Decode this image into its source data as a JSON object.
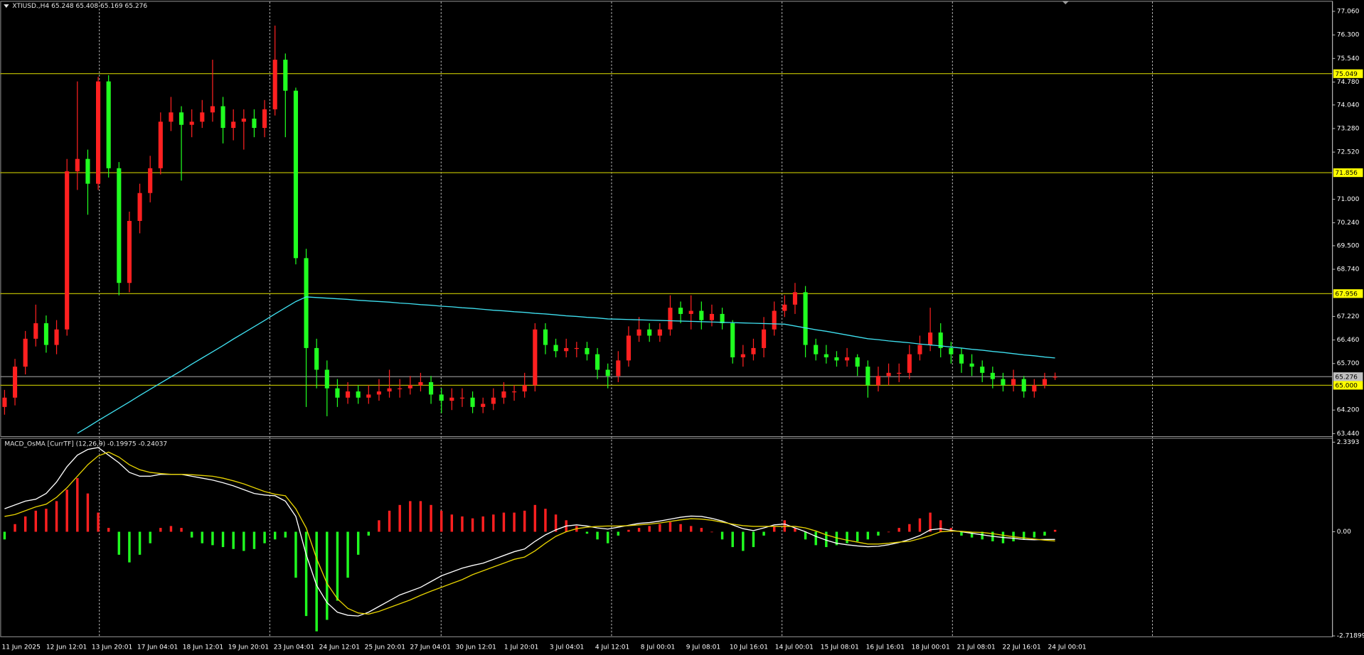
{
  "chart_data": [
    {
      "type": "candlestick",
      "title": "XTIUSD.,H4  65.248 65.408 65.169 65.276",
      "open": [
        64.3,
        64.6,
        65.6,
        66.5,
        67.0,
        66.3,
        66.8,
        71.9,
        72.3,
        71.5,
        74.8,
        72.0,
        68.3,
        70.3,
        71.2,
        72.0,
        73.5,
        73.8,
        73.4,
        73.5,
        73.8,
        74.0,
        73.3,
        73.5,
        73.6,
        73.3,
        73.9,
        75.5,
        74.5,
        69.1,
        66.2,
        65.5,
        64.9,
        64.6,
        64.8,
        64.6,
        64.7,
        64.8,
        64.9,
        64.9,
        65.0,
        65.1,
        64.7,
        64.5,
        64.6,
        64.6,
        64.3,
        64.4,
        64.6,
        64.8,
        64.8,
        65.0,
        66.8,
        66.3,
        66.1,
        66.2,
        66.2,
        66.0,
        65.5,
        65.3,
        65.8,
        66.6,
        66.8,
        66.6,
        66.8,
        67.5,
        67.3,
        67.4,
        67.1,
        67.3,
        67.0,
        65.9,
        66.0,
        66.2,
        66.8,
        67.4,
        67.6,
        68.0,
        66.3,
        66.0,
        65.9,
        65.8,
        65.9,
        65.6,
        65.0,
        65.3,
        65.4,
        65.4,
        66.0,
        66.3,
        66.7,
        66.2,
        66.0,
        65.7,
        65.6,
        65.4,
        65.2,
        65.0,
        65.2,
        64.8,
        65.0,
        65.248
      ],
      "high": [
        64.85,
        65.85,
        66.75,
        67.6,
        67.25,
        67.1,
        72.3,
        74.8,
        72.6,
        74.95,
        75.0,
        72.2,
        70.6,
        71.5,
        72.4,
        73.8,
        74.3,
        74.0,
        73.9,
        74.2,
        75.5,
        74.3,
        73.9,
        73.9,
        73.9,
        74.2,
        76.6,
        75.7,
        74.6,
        69.4,
        66.5,
        65.8,
        65.2,
        65.1,
        65.0,
        65.0,
        65.2,
        65.5,
        65.2,
        65.3,
        65.4,
        65.3,
        64.9,
        64.9,
        64.9,
        64.8,
        64.6,
        64.9,
        65.1,
        65.0,
        65.4,
        67.0,
        67.0,
        66.5,
        66.5,
        66.4,
        66.4,
        66.2,
        65.7,
        66.1,
        66.9,
        67.2,
        67.0,
        67.0,
        67.9,
        67.7,
        67.9,
        67.7,
        67.6,
        67.5,
        67.1,
        66.3,
        66.5,
        67.2,
        67.7,
        67.9,
        68.3,
        68.2,
        66.5,
        66.3,
        66.1,
        66.2,
        66.0,
        65.8,
        65.6,
        65.7,
        65.7,
        66.3,
        66.6,
        67.5,
        67.0,
        66.4,
        66.2,
        66.0,
        65.8,
        65.6,
        65.4,
        65.5,
        65.3,
        65.2,
        65.4,
        65.408
      ],
      "low": [
        64.05,
        64.35,
        65.35,
        66.25,
        66.05,
        66.0,
        66.6,
        71.3,
        70.5,
        71.3,
        71.7,
        67.9,
        68.0,
        69.9,
        70.9,
        71.8,
        73.2,
        71.6,
        73.0,
        73.3,
        73.5,
        72.8,
        72.9,
        72.6,
        73.0,
        73.0,
        73.7,
        73.0,
        68.9,
        64.3,
        64.9,
        64.0,
        64.3,
        64.4,
        64.4,
        64.4,
        64.5,
        64.6,
        64.6,
        64.7,
        64.8,
        64.4,
        64.1,
        64.2,
        64.3,
        64.1,
        64.1,
        64.2,
        64.4,
        64.5,
        64.6,
        64.8,
        66.0,
        65.9,
        65.9,
        65.9,
        65.8,
        65.2,
        64.9,
        65.1,
        65.6,
        66.4,
        66.4,
        66.4,
        66.6,
        67.0,
        66.8,
        66.8,
        66.9,
        66.8,
        65.7,
        65.6,
        65.8,
        65.9,
        66.6,
        67.2,
        67.3,
        65.9,
        65.8,
        65.7,
        65.6,
        65.6,
        65.3,
        64.6,
        64.8,
        65.0,
        65.1,
        65.2,
        65.8,
        66.1,
        65.9,
        65.7,
        65.4,
        65.3,
        65.1,
        64.9,
        64.8,
        64.8,
        64.6,
        64.6,
        64.9,
        65.169
      ],
      "close": [
        64.6,
        65.6,
        66.5,
        67.0,
        66.3,
        66.8,
        71.9,
        72.3,
        71.5,
        74.8,
        72.0,
        68.3,
        70.3,
        71.2,
        72.0,
        73.5,
        73.8,
        73.4,
        73.5,
        73.8,
        74.0,
        73.3,
        73.5,
        73.6,
        73.3,
        73.9,
        75.5,
        74.5,
        69.1,
        66.2,
        65.5,
        64.9,
        64.6,
        64.8,
        64.6,
        64.7,
        64.8,
        64.9,
        64.9,
        65.0,
        65.1,
        64.7,
        64.5,
        64.6,
        64.6,
        64.3,
        64.4,
        64.6,
        64.8,
        64.8,
        65.0,
        66.8,
        66.3,
        66.1,
        66.2,
        66.2,
        66.0,
        65.5,
        65.3,
        65.8,
        66.6,
        66.8,
        66.6,
        66.8,
        67.5,
        67.3,
        67.4,
        67.1,
        67.3,
        67.0,
        65.9,
        66.0,
        66.2,
        66.8,
        67.4,
        67.6,
        68.0,
        66.3,
        66.0,
        65.9,
        65.8,
        65.9,
        65.6,
        65.0,
        65.3,
        65.4,
        65.4,
        66.0,
        66.3,
        66.7,
        66.2,
        66.0,
        65.7,
        65.6,
        65.4,
        65.2,
        65.0,
        65.2,
        64.8,
        65.0,
        65.2,
        65.276
      ],
      "up_color": "#ff2020",
      "down_color": "#20ff20",
      "lines": [
        {
          "color": "#3fe0f0",
          "values": [
            null,
            null,
            null,
            null,
            null,
            null,
            null,
            63.45,
            63.65,
            63.86,
            64.06,
            64.26,
            64.46,
            64.67,
            64.87,
            65.07,
            65.27,
            65.47,
            65.68,
            65.88,
            66.08,
            66.28,
            66.49,
            66.69,
            66.89,
            67.09,
            67.3,
            67.5,
            67.7,
            67.85,
            67.83,
            67.81,
            67.79,
            67.77,
            67.74,
            67.72,
            67.7,
            67.68,
            67.65,
            67.63,
            67.6,
            67.58,
            67.55,
            67.53,
            67.5,
            67.48,
            67.45,
            67.42,
            67.4,
            67.37,
            67.35,
            67.32,
            67.3,
            67.27,
            67.24,
            67.22,
            67.19,
            67.17,
            67.14,
            67.13,
            67.12,
            67.11,
            67.1,
            67.09,
            67.08,
            67.07,
            67.06,
            67.05,
            67.04,
            67.03,
            67.02,
            67.01,
            67.0,
            66.99,
            66.98,
            66.97,
            66.91,
            66.85,
            66.79,
            66.74,
            66.68,
            66.62,
            66.56,
            66.5,
            66.47,
            66.43,
            66.4,
            66.37,
            66.33,
            66.3,
            66.27,
            66.23,
            66.2,
            66.16,
            66.13,
            66.09,
            66.06,
            66.02,
            65.98,
            65.95,
            65.91,
            65.88
          ]
        }
      ],
      "levels": [
        75.049,
        71.856,
        67.956,
        {
          "value": 65,
          "label": "65.000"
        }
      ],
      "current_price": 65.276,
      "ylim": [
        63.36,
        77.37
      ],
      "yticks": [
        {
          "value": 77.06,
          "label": "77.060"
        },
        {
          "value": 76.3,
          "label": "76.300"
        },
        {
          "value": 75.54,
          "label": "75.540"
        },
        {
          "value": 74.78,
          "label": "74.780"
        },
        {
          "value": 74.04,
          "label": "74.040"
        },
        {
          "value": 73.28,
          "label": "73.280"
        },
        {
          "value": 72.52,
          "label": "72.520"
        },
        {
          "value": 71,
          "label": "71.000"
        },
        {
          "value": 70.24,
          "label": "70.240"
        },
        {
          "value": 69.5,
          "label": "69.500"
        },
        {
          "value": 68.74,
          "label": "68.740"
        },
        {
          "value": 67.22,
          "label": "67.220"
        },
        {
          "value": 66.46,
          "label": "66.460"
        },
        {
          "value": 65.7,
          "label": "65.700"
        },
        {
          "value": 64.2,
          "label": "64.200"
        },
        {
          "value": 63.44,
          "label": "63.440"
        }
      ],
      "x_labels": [
        "11 Jun 2025",
        "12 Jun 12:01",
        "13 Jun 20:01",
        "17 Jun 04:01",
        "18 Jun 12:01",
        "19 Jun 20:01",
        "23 Jun 04:01",
        "24 Jun 12:01",
        "25 Jun 20:01",
        "27 Jun 04:01",
        "30 Jun 12:01",
        "1 Jul 20:01",
        "3 Jul 04:01",
        "4 Jul 12:01",
        "8 Jul 00:01",
        "9 Jul 08:01",
        "10 Jul 16:01",
        "14 Jul 00:01",
        "15 Jul 08:01",
        "16 Jul 16:01",
        "18 Jul 00:01",
        "21 Jul 08:01",
        "22 Jul 16:01",
        "24 Jul 00:01"
      ]
    },
    {
      "type": "macd",
      "title": "MACD_OsMA [CurrTF] (12,26,9) -0.19975 -0.24037",
      "histogram": [
        -0.2,
        0.2,
        0.4,
        0.55,
        0.6,
        0.8,
        1.1,
        1.4,
        1.0,
        0.5,
        0.1,
        -0.6,
        -0.8,
        -0.6,
        -0.3,
        0.1,
        0.15,
        0.1,
        -0.15,
        -0.3,
        -0.35,
        -0.4,
        -0.45,
        -0.5,
        -0.45,
        -0.3,
        -0.2,
        -0.15,
        -1.2,
        -2.2,
        -2.6,
        -2.3,
        -1.8,
        -1.2,
        -0.6,
        -0.1,
        0.3,
        0.55,
        0.7,
        0.8,
        0.8,
        0.7,
        0.55,
        0.45,
        0.4,
        0.35,
        0.4,
        0.45,
        0.5,
        0.5,
        0.55,
        0.7,
        0.6,
        0.45,
        0.3,
        0.15,
        -0.05,
        -0.2,
        -0.3,
        -0.1,
        0.05,
        0.1,
        0.15,
        0.2,
        0.25,
        0.2,
        0.15,
        0.1,
        0.0,
        -0.2,
        -0.4,
        -0.5,
        -0.4,
        -0.1,
        0.15,
        0.3,
        0.1,
        -0.2,
        -0.35,
        -0.4,
        -0.35,
        -0.3,
        -0.25,
        -0.2,
        -0.1,
        0.0,
        0.1,
        0.2,
        0.35,
        0.5,
        0.3,
        0.1,
        -0.1,
        -0.15,
        -0.2,
        -0.25,
        -0.3,
        -0.25,
        -0.2,
        -0.15,
        -0.1,
        0.05
      ],
      "up_color": "#ff2020",
      "down_color": "#20ff20",
      "series": [
        {
          "color": "#ffffff",
          "values": [
            0.6,
            0.7,
            0.8,
            0.85,
            1.0,
            1.3,
            1.7,
            2.0,
            2.15,
            2.2,
            2.0,
            1.8,
            1.55,
            1.45,
            1.45,
            1.5,
            1.5,
            1.5,
            1.45,
            1.4,
            1.35,
            1.28,
            1.2,
            1.1,
            1.0,
            0.96,
            0.94,
            0.8,
            0.4,
            -0.6,
            -1.4,
            -1.85,
            -2.1,
            -2.18,
            -2.2,
            -2.1,
            -1.95,
            -1.8,
            -1.65,
            -1.55,
            -1.45,
            -1.3,
            -1.15,
            -1.05,
            -0.95,
            -0.88,
            -0.82,
            -0.72,
            -0.62,
            -0.52,
            -0.45,
            -0.25,
            -0.08,
            0.05,
            0.15,
            0.18,
            0.15,
            0.1,
            0.07,
            0.12,
            0.17,
            0.22,
            0.24,
            0.28,
            0.33,
            0.38,
            0.41,
            0.4,
            0.35,
            0.28,
            0.18,
            0.08,
            0.03,
            0.1,
            0.18,
            0.2,
            0.1,
            0.0,
            -0.12,
            -0.22,
            -0.3,
            -0.34,
            -0.37,
            -0.39,
            -0.38,
            -0.34,
            -0.28,
            -0.2,
            -0.1,
            0.05,
            0.08,
            0.04,
            0.0,
            -0.04,
            -0.08,
            -0.12,
            -0.15,
            -0.17,
            -0.2,
            -0.21,
            -0.2,
            -0.19975
          ]
        },
        {
          "color": "#e6d200",
          "values": [
            0.4,
            0.45,
            0.55,
            0.65,
            0.72,
            0.9,
            1.15,
            1.45,
            1.75,
            1.98,
            2.08,
            1.95,
            1.75,
            1.62,
            1.55,
            1.52,
            1.5,
            1.5,
            1.49,
            1.47,
            1.45,
            1.4,
            1.33,
            1.25,
            1.15,
            1.05,
            0.98,
            0.94,
            0.6,
            0.1,
            -0.7,
            -1.35,
            -1.75,
            -2.0,
            -2.12,
            -2.15,
            -2.08,
            -1.98,
            -1.88,
            -1.78,
            -1.66,
            -1.55,
            -1.45,
            -1.35,
            -1.25,
            -1.12,
            -1.02,
            -0.92,
            -0.82,
            -0.72,
            -0.66,
            -0.5,
            -0.3,
            -0.12,
            0.0,
            0.08,
            0.12,
            0.14,
            0.15,
            0.15,
            0.16,
            0.18,
            0.2,
            0.23,
            0.27,
            0.31,
            0.34,
            0.33,
            0.3,
            0.25,
            0.2,
            0.16,
            0.14,
            0.14,
            0.14,
            0.14,
            0.14,
            0.1,
            0.02,
            -0.08,
            -0.16,
            -0.22,
            -0.27,
            -0.32,
            -0.32,
            -0.3,
            -0.27,
            -0.25,
            -0.18,
            -0.1,
            0.0,
            0.02,
            0.01,
            -0.01,
            -0.02,
            -0.05,
            -0.09,
            -0.13,
            -0.16,
            -0.19,
            -0.22,
            -0.24037
          ]
        }
      ],
      "ylim": [
        -2.71899,
        2.3393
      ],
      "yticks": [
        2.3393,
        {
          "value": 0,
          "label": "0.00"
        },
        -2.71899
      ]
    }
  ]
}
